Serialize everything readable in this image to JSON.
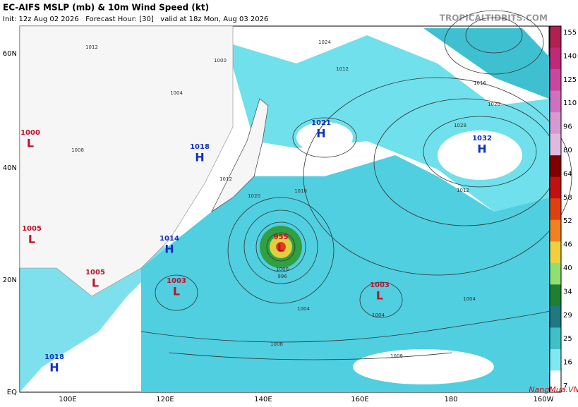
{
  "header": {
    "title": "EC-AIFS MSLP (mb) & 10m Wind Speed (kt)",
    "subtitle": "Init: 12z Aug 02 2026   Forecast Hour: [30]   valid at 18z Mon, Aug 03 2026",
    "site": "TROPICALTIDBITS.COM"
  },
  "map": {
    "lat_labels": [
      "60N",
      "40N",
      "20N",
      "EQ"
    ],
    "lon_labels": [
      "100E",
      "120E",
      "140E",
      "160E",
      "180",
      "160W"
    ],
    "centers": [
      {
        "kind": "L",
        "pressure": 1000
      },
      {
        "kind": "L",
        "pressure": 1005
      },
      {
        "kind": "H",
        "pressure": 1014
      },
      {
        "kind": "L",
        "pressure": 1005
      },
      {
        "kind": "L",
        "pressure": 1003
      },
      {
        "kind": "L",
        "pressure": 955
      },
      {
        "kind": "L",
        "pressure": 1003
      },
      {
        "kind": "H",
        "pressure": 1021
      },
      {
        "kind": "H",
        "pressure": 1018
      },
      {
        "kind": "H",
        "pressure": 1032
      },
      {
        "kind": "H",
        "pressure": 1018
      }
    ],
    "isobar_labels": [
      1012,
      1000,
      1004,
      1008,
      1012,
      1016,
      1020,
      1024,
      1028,
      1020,
      1016,
      1012,
      1004,
      1008,
      1004,
      1008,
      1012,
      996,
      1000,
      1004
    ]
  },
  "colorbar": {
    "ticks": [
      155,
      140,
      125,
      110,
      96,
      80,
      64,
      58,
      52,
      46,
      40,
      34,
      29,
      25,
      16,
      7
    ],
    "colors": [
      "#b02050",
      "#c02878",
      "#c848a0",
      "#d070c0",
      "#d898d0",
      "#e0b8e0",
      "#800000",
      "#c01010",
      "#e04010",
      "#f08020",
      "#f0d040",
      "#90e070",
      "#208030",
      "#207880",
      "#40c0c8",
      "#80e8f0",
      "#ffffff"
    ]
  },
  "watermark": "NangMua.VN"
}
